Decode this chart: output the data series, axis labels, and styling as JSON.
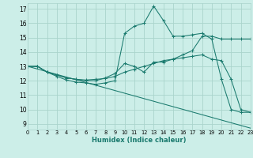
{
  "xlabel": "Humidex (Indice chaleur)",
  "bg_color": "#cceee8",
  "grid_color": "#aad4cc",
  "line_color": "#1a7a6e",
  "xlim": [
    0,
    23
  ],
  "ylim": [
    8.6,
    17.4
  ],
  "yticks": [
    9,
    10,
    11,
    12,
    13,
    14,
    15,
    16,
    17
  ],
  "xticks": [
    0,
    1,
    2,
    3,
    4,
    5,
    6,
    7,
    8,
    9,
    10,
    11,
    12,
    13,
    14,
    15,
    16,
    17,
    18,
    19,
    20,
    21,
    22,
    23
  ],
  "lines": [
    {
      "x": [
        0,
        23
      ],
      "y": [
        13,
        8.7
      ],
      "markers": false
    },
    {
      "x": [
        0,
        1,
        2,
        3,
        4,
        5,
        6,
        7,
        8,
        9,
        10,
        11,
        12,
        13,
        14,
        15,
        16,
        17,
        18,
        19,
        20,
        21,
        22,
        23
      ],
      "y": [
        13,
        13,
        12.6,
        12.4,
        12.2,
        12.1,
        12.05,
        12.1,
        12.15,
        12.3,
        12.6,
        12.8,
        13.0,
        13.2,
        13.4,
        13.5,
        13.6,
        13.7,
        13.8,
        13.5,
        13.4,
        12.1,
        10.0,
        9.8
      ],
      "markers": true
    },
    {
      "x": [
        0,
        1,
        2,
        3,
        4,
        5,
        6,
        7,
        8,
        9,
        10,
        11,
        12,
        13,
        14,
        15,
        16,
        17,
        18,
        19,
        20,
        21,
        22,
        23
      ],
      "y": [
        13,
        13,
        12.6,
        12.3,
        12.05,
        11.9,
        11.85,
        11.75,
        11.85,
        12.0,
        15.3,
        15.8,
        16.0,
        17.2,
        16.2,
        15.1,
        15.1,
        15.2,
        15.3,
        14.9,
        12.1,
        10.0,
        9.8,
        9.8
      ],
      "markers": true
    },
    {
      "x": [
        0,
        1,
        2,
        3,
        4,
        5,
        6,
        7,
        8,
        9,
        10,
        11,
        12,
        13,
        14,
        15,
        16,
        17,
        18,
        19,
        20,
        21,
        22,
        23
      ],
      "y": [
        13,
        13,
        12.6,
        12.4,
        12.2,
        12.1,
        12.0,
        12.0,
        12.2,
        12.5,
        13.2,
        13.0,
        12.6,
        13.3,
        13.3,
        13.5,
        13.8,
        14.1,
        15.1,
        15.1,
        14.9,
        14.9,
        14.9,
        14.9
      ],
      "markers": true
    }
  ]
}
